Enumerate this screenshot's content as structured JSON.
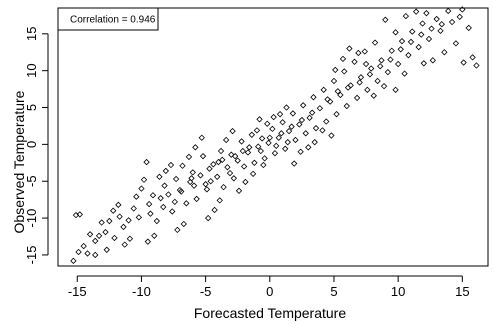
{
  "chart_data": {
    "type": "scatter",
    "title": "",
    "xlabel": "Forecasted Temperature",
    "ylabel": "Observed Temperature",
    "xlim": [
      -16.5,
      17
    ],
    "ylim": [
      -16.5,
      18.5
    ],
    "xticks": [
      -15,
      -10,
      -5,
      0,
      5,
      10,
      15
    ],
    "yticks": [
      -15,
      -10,
      -5,
      0,
      5,
      10,
      15
    ],
    "xtick_labels": [
      "-15",
      "-10",
      "-5",
      "0",
      "5",
      "10",
      "15"
    ],
    "ytick_labels": [
      "-15",
      "-10",
      "-5",
      "0",
      "5",
      "10",
      "15"
    ],
    "marker": "open-diamond",
    "grid": false,
    "legend_box_placement": "top-left",
    "annotation": "Correlation = 0.946",
    "series": [
      {
        "values": [
          [
            -15.1,
            -9.6
          ],
          [
            -14.8,
            -9.5
          ],
          [
            -15.3,
            -15.8
          ],
          [
            -14.9,
            -14.6
          ],
          [
            -14.5,
            -13.8
          ],
          [
            -14.2,
            -14.8
          ],
          [
            -13.6,
            -13.1
          ],
          [
            -13.3,
            -12.4
          ],
          [
            -12.8,
            -11.9
          ],
          [
            -12.5,
            -10.4
          ],
          [
            -12.1,
            -12.7
          ],
          [
            -11.7,
            -9.8
          ],
          [
            -11.4,
            -11.2
          ],
          [
            -11.0,
            -10.3
          ],
          [
            -10.6,
            -8.7
          ],
          [
            -10.2,
            -9.9
          ],
          [
            -9.8,
            -4.8
          ],
          [
            -9.6,
            -2.4
          ],
          [
            -9.4,
            -8.1
          ],
          [
            -9.1,
            -6.9
          ],
          [
            -8.8,
            -10.4
          ],
          [
            -8.5,
            -7.3
          ],
          [
            -8.2,
            -5.6
          ],
          [
            -7.9,
            -6.8
          ],
          [
            -7.6,
            -9.1
          ],
          [
            -7.3,
            -4.7
          ],
          [
            -7.0,
            -6.2
          ],
          [
            -6.8,
            -2.9
          ],
          [
            -6.5,
            -8.0
          ],
          [
            -6.2,
            -5.1
          ],
          [
            -6.0,
            -3.8
          ],
          [
            -5.7,
            -7.4
          ],
          [
            -5.4,
            -4.2
          ],
          [
            -5.2,
            -1.6
          ],
          [
            -4.9,
            -6.1
          ],
          [
            -4.6,
            -5.0
          ],
          [
            -4.4,
            -2.7
          ],
          [
            -4.1,
            -4.4
          ],
          [
            -3.8,
            -0.9
          ],
          [
            -3.6,
            -5.8
          ],
          [
            -3.3,
            -3.1
          ],
          [
            -3.0,
            -1.4
          ],
          [
            -2.8,
            -4.6
          ],
          [
            -2.5,
            -2.2
          ],
          [
            -2.2,
            0.4
          ],
          [
            -2.0,
            -3.0
          ],
          [
            -1.7,
            -1.1
          ],
          [
            -1.4,
            1.3
          ],
          [
            -1.2,
            -2.5
          ],
          [
            -0.9,
            -0.3
          ],
          [
            -0.6,
            0.8
          ],
          [
            -0.4,
            -1.9
          ],
          [
            -0.1,
            0.2
          ],
          [
            0.2,
            2.1
          ],
          [
            0.4,
            -1.2
          ],
          [
            0.7,
            0.9
          ],
          [
            1.0,
            3.0
          ],
          [
            1.2,
            -0.6
          ],
          [
            1.5,
            1.8
          ],
          [
            1.8,
            4.2
          ],
          [
            2.0,
            0.6
          ],
          [
            2.3,
            2.7
          ],
          [
            2.6,
            5.3
          ],
          [
            2.8,
            1.5
          ],
          [
            3.1,
            3.6
          ],
          [
            3.4,
            6.4
          ],
          [
            3.6,
            2.2
          ],
          [
            3.9,
            4.9
          ],
          [
            4.2,
            7.4
          ],
          [
            4.4,
            3.1
          ],
          [
            4.7,
            5.8
          ],
          [
            5.0,
            8.6
          ],
          [
            5.2,
            4.1
          ],
          [
            5.5,
            6.7
          ],
          [
            5.8,
            9.9
          ],
          [
            6.0,
            5.2
          ],
          [
            6.3,
            8.0
          ],
          [
            6.6,
            11.2
          ],
          [
            6.8,
            6.3
          ],
          [
            7.1,
            9.1
          ],
          [
            7.4,
            12.6
          ],
          [
            7.6,
            7.4
          ],
          [
            7.9,
            10.3
          ],
          [
            8.2,
            13.8
          ],
          [
            8.4,
            8.6
          ],
          [
            8.7,
            11.4
          ],
          [
            9.0,
            16.9
          ],
          [
            9.2,
            9.8
          ],
          [
            9.5,
            12.7
          ],
          [
            9.8,
            15.2
          ],
          [
            10.0,
            10.9
          ],
          [
            10.3,
            14.0
          ],
          [
            10.6,
            17.4
          ],
          [
            10.8,
            12.1
          ],
          [
            11.1,
            15.3
          ],
          [
            11.4,
            18.0
          ],
          [
            11.6,
            13.2
          ],
          [
            11.9,
            16.4
          ],
          [
            12.2,
            17.8
          ],
          [
            12.4,
            14.3
          ],
          [
            12.7,
            11.4
          ],
          [
            13.0,
            17.0
          ],
          [
            13.3,
            15.4
          ],
          [
            13.6,
            12.5
          ],
          [
            13.9,
            18.1
          ],
          [
            14.2,
            16.6
          ],
          [
            14.5,
            13.7
          ],
          [
            14.8,
            17.3
          ],
          [
            15.1,
            11.1
          ],
          [
            15.5,
            15.8
          ],
          [
            15.8,
            11.8
          ],
          [
            16.1,
            10.7
          ],
          [
            15.0,
            18.3
          ],
          [
            12.0,
            11.0
          ],
          [
            10.5,
            9.6
          ],
          [
            9.8,
            7.4
          ],
          [
            8.9,
            7.9
          ],
          [
            8.1,
            6.6
          ],
          [
            7.5,
            10.9
          ],
          [
            6.9,
            12.4
          ],
          [
            6.2,
            13.0
          ],
          [
            5.7,
            11.6
          ],
          [
            5.1,
            10.1
          ],
          [
            4.8,
            1.2
          ],
          [
            4.1,
            1.9
          ],
          [
            3.5,
            0.3
          ],
          [
            3.0,
            -0.4
          ],
          [
            2.4,
            -1.0
          ],
          [
            1.9,
            -2.6
          ],
          [
            1.3,
            5.0
          ],
          [
            0.8,
            4.1
          ],
          [
            0.3,
            3.7
          ],
          [
            -0.2,
            2.8
          ],
          [
            -0.8,
            3.4
          ],
          [
            -1.3,
            -4.0
          ],
          [
            -1.9,
            -5.1
          ],
          [
            -2.4,
            -6.3
          ],
          [
            -2.9,
            1.8
          ],
          [
            -3.4,
            0.6
          ],
          [
            -3.9,
            -7.6
          ],
          [
            -4.3,
            -8.9
          ],
          [
            -4.8,
            -10.0
          ],
          [
            -5.3,
            0.9
          ],
          [
            -5.8,
            -0.4
          ],
          [
            -6.3,
            -1.7
          ],
          [
            -6.7,
            -10.8
          ],
          [
            -7.2,
            -11.6
          ],
          [
            -7.7,
            -2.8
          ],
          [
            -8.1,
            -3.6
          ],
          [
            -8.6,
            -4.4
          ],
          [
            -9.0,
            -12.4
          ],
          [
            -9.5,
            -13.2
          ],
          [
            -10.0,
            -6.0
          ],
          [
            -10.4,
            -7.1
          ],
          [
            -10.9,
            -12.8
          ],
          [
            -11.3,
            -13.6
          ],
          [
            -11.8,
            -8.2
          ],
          [
            -12.2,
            -9.0
          ],
          [
            -12.7,
            -14.3
          ],
          [
            -13.1,
            -10.6
          ],
          [
            -13.6,
            -15.0
          ],
          [
            -14.0,
            -12.2
          ],
          [
            -4.7,
            -3.3
          ],
          [
            -3.7,
            -2.1
          ],
          [
            -2.7,
            -1.6
          ],
          [
            -1.6,
            -0.4
          ],
          [
            -0.7,
            -0.9
          ],
          [
            0.0,
            0.9
          ],
          [
            0.9,
            1.5
          ],
          [
            1.7,
            2.4
          ],
          [
            2.5,
            3.3
          ],
          [
            3.3,
            4.3
          ],
          [
            -5.9,
            -5.6
          ],
          [
            -6.9,
            -6.4
          ],
          [
            -7.4,
            -7.8
          ],
          [
            -8.3,
            -8.5
          ],
          [
            -9.3,
            -9.4
          ],
          [
            -0.5,
            -2.8
          ],
          [
            0.5,
            -0.2
          ],
          [
            1.4,
            0.3
          ],
          [
            -1.0,
            1.9
          ],
          [
            -2.1,
            -0.9
          ],
          [
            -3.1,
            -3.9
          ],
          [
            -4.0,
            -2.4
          ],
          [
            -5.0,
            -5.4
          ],
          [
            -6.1,
            -4.6
          ],
          [
            4.5,
            6.1
          ],
          [
            5.3,
            7.2
          ],
          [
            6.1,
            7.7
          ],
          [
            7.0,
            8.4
          ],
          [
            7.8,
            9.5
          ],
          [
            8.6,
            10.6
          ],
          [
            9.4,
            11.5
          ],
          [
            10.2,
            12.9
          ],
          [
            11.0,
            13.9
          ],
          [
            11.8,
            14.9
          ],
          [
            12.6,
            15.7
          ],
          [
            13.4,
            16.3
          ]
        ]
      }
    ]
  }
}
